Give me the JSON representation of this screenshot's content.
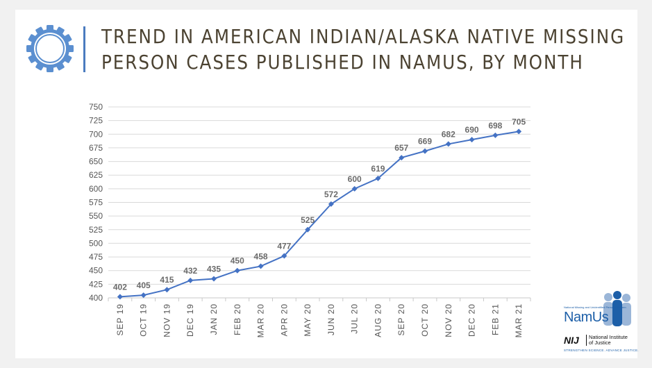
{
  "slide": {
    "title_line1": "Trend in American Indian/Alaska Native Missing",
    "title_line2": "Person Cases Published in NamUs, by Month"
  },
  "logos": {
    "namus_name": "NamUs",
    "namus_tagline": "National Missing and Unidentified Persons System",
    "nij_abbr": "NIJ",
    "nij_name": "National Institute\nof Justice",
    "nij_tagline": "STRENGTHEN SCIENCE. ADVANCE JUSTICE."
  },
  "colors": {
    "series": "#4472c4",
    "title": "#4b4231",
    "accent": "#4a7bbf"
  },
  "chart_data": {
    "type": "line",
    "categories": [
      "SEP 19",
      "OCT 19",
      "NOV 19",
      "DEC 19",
      "JAN 20",
      "FEB 20",
      "MAR 20",
      "APR 20",
      "MAY 20",
      "JUN 20",
      "JUL 20",
      "AUG 20",
      "SEP 20",
      "OCT 20",
      "NOV 20",
      "DEC 20",
      "FEB 21",
      "MAR 21"
    ],
    "values": [
      402,
      405,
      415,
      432,
      435,
      450,
      458,
      477,
      525,
      572,
      600,
      619,
      657,
      669,
      682,
      690,
      698,
      705
    ],
    "ylim": [
      400,
      750
    ],
    "ytick_step": 25,
    "grid": true,
    "marker": "diamond",
    "data_labels": true,
    "title": "",
    "xlabel": "",
    "ylabel": ""
  }
}
